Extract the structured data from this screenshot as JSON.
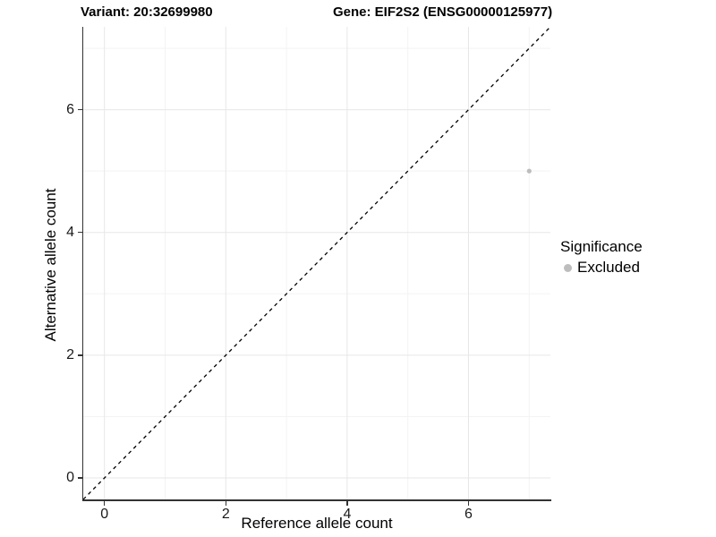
{
  "chart_data": {
    "type": "scatter",
    "titles": {
      "variant": "Variant: 20:32699980",
      "gene": "Gene: EIF2S2 (ENSG00000125977)"
    },
    "xlabel": "Reference allele count",
    "ylabel": "Alternative allele count",
    "xlim": [
      -0.35,
      7.35
    ],
    "ylim": [
      -0.35,
      7.35
    ],
    "x_ticks": [
      0,
      2,
      4,
      6
    ],
    "y_ticks": [
      0,
      2,
      4,
      6
    ],
    "x_minor_ticks": [
      1,
      3,
      5,
      7
    ],
    "y_minor_ticks": [
      1,
      3,
      5,
      7
    ],
    "grid": "major+minor",
    "reference_line": {
      "type": "identity-diagonal",
      "equation": "y = x",
      "style": "dashed",
      "color": "#000000"
    },
    "series": [
      {
        "name": "Excluded",
        "color": "#bdbdbd",
        "point_radius": 2.6,
        "points": [
          {
            "x": 7,
            "y": 5
          }
        ]
      }
    ],
    "legend": {
      "title": "Significance",
      "position": "right",
      "items": [
        {
          "label": "Excluded",
          "color": "#bdbdbd"
        }
      ]
    },
    "colors": {
      "grid_major": "#e7e7e7",
      "grid_minor": "#f3f3f3",
      "axis_line": "#333333",
      "tick_label": "#1a1a1a",
      "point": "#bdbdbd"
    }
  }
}
